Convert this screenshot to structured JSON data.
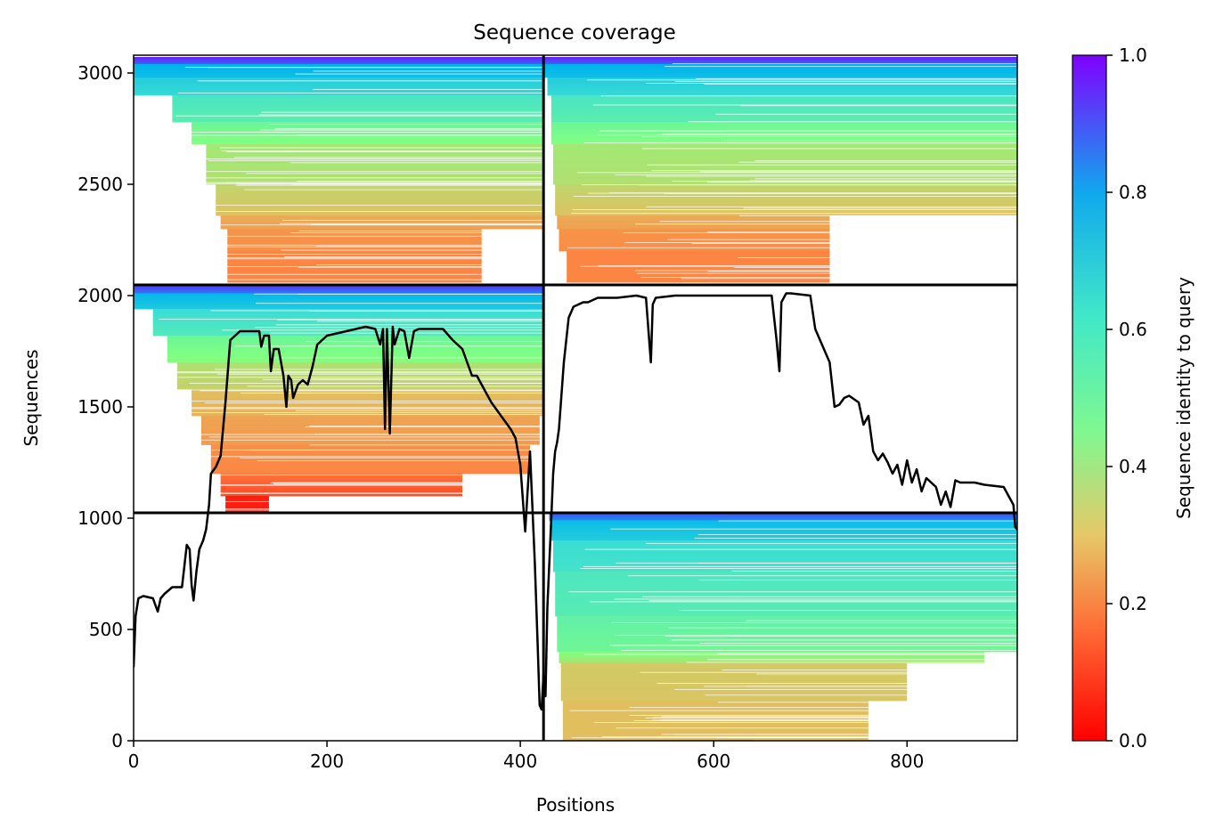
{
  "chart_data": {
    "type": "heatmap",
    "title": "Sequence coverage",
    "xlabel": "Positions",
    "ylabel": "Sequences",
    "colorbar_label": "Sequence identity to query",
    "xlim": [
      0,
      914
    ],
    "ylim": [
      0,
      3080
    ],
    "xticks": [
      0,
      200,
      400,
      600,
      800
    ],
    "yticks": [
      0,
      500,
      1000,
      1500,
      2000,
      2500,
      3000
    ],
    "colorbar_ticks": [
      0.0,
      0.2,
      0.4,
      0.6,
      0.8,
      1.0
    ],
    "colorbar_tick_labels": [
      "0.0",
      "0.2",
      "0.4",
      "0.6",
      "0.8",
      "1.0"
    ],
    "colormap": "rainbow",
    "colormap_colors": [
      "#ff0000",
      "#ff8040",
      "#e0c060",
      "#80ff80",
      "#40e0d0",
      "#00b4ec",
      "#8000ff"
    ],
    "divider_lines": {
      "x": [
        424
      ],
      "y": [
        1024,
        2048
      ]
    },
    "blocks": [
      {
        "name": "block-top-left",
        "x_range": [
          0,
          424
        ],
        "y_range": [
          2048,
          3072
        ],
        "bands": [
          {
            "y": [
              3040,
              3072
            ],
            "x": [
              0,
              424
            ],
            "identity": 0.97
          },
          {
            "y": [
              2980,
              3040
            ],
            "x": [
              0,
              424
            ],
            "identity": 0.84
          },
          {
            "y": [
              2900,
              2980
            ],
            "x": [
              0,
              424
            ],
            "identity": 0.74
          },
          {
            "y": [
              2780,
              2900
            ],
            "x": [
              40,
              424
            ],
            "identity": 0.64
          },
          {
            "y": [
              2680,
              2780
            ],
            "x": [
              60,
              424
            ],
            "identity": 0.55
          },
          {
            "y": [
              2500,
              2680
            ],
            "x": [
              75,
              424
            ],
            "identity": 0.44
          },
          {
            "y": [
              2360,
              2500
            ],
            "x": [
              85,
              424
            ],
            "identity": 0.39
          },
          {
            "y": [
              2300,
              2360
            ],
            "x": [
              90,
              424
            ],
            "identity": 0.28
          },
          {
            "y": [
              2200,
              2300
            ],
            "x": [
              97,
              360
            ],
            "identity": 0.22
          },
          {
            "y": [
              2060,
              2200
            ],
            "x": [
              97,
              360
            ],
            "identity": 0.18
          }
        ]
      },
      {
        "name": "block-top-right",
        "x_range": [
          424,
          914
        ],
        "y_range": [
          2048,
          3072
        ],
        "bands": [
          {
            "y": [
              3040,
              3072
            ],
            "x": [
              424,
              914
            ],
            "identity": 0.97
          },
          {
            "y": [
              2980,
              3040
            ],
            "x": [
              424,
              914
            ],
            "identity": 0.84
          },
          {
            "y": [
              2900,
              2980
            ],
            "x": [
              428,
              914
            ],
            "identity": 0.74
          },
          {
            "y": [
              2780,
              2900
            ],
            "x": [
              432,
              914
            ],
            "identity": 0.64
          },
          {
            "y": [
              2680,
              2780
            ],
            "x": [
              432,
              914
            ],
            "identity": 0.55
          },
          {
            "y": [
              2500,
              2680
            ],
            "x": [
              434,
              914
            ],
            "identity": 0.44
          },
          {
            "y": [
              2360,
              2500
            ],
            "x": [
              436,
              914
            ],
            "identity": 0.39
          },
          {
            "y": [
              2300,
              2360
            ],
            "x": [
              438,
              720
            ],
            "identity": 0.28
          },
          {
            "y": [
              2200,
              2300
            ],
            "x": [
              440,
              720
            ],
            "identity": 0.22
          },
          {
            "y": [
              2060,
              2200
            ],
            "x": [
              448,
              720
            ],
            "identity": 0.18
          }
        ]
      },
      {
        "name": "block-middle-left",
        "x_range": [
          0,
          424
        ],
        "y_range": [
          1024,
          2048
        ],
        "bands": [
          {
            "y": [
              2010,
              2048
            ],
            "x": [
              0,
              424
            ],
            "identity": 0.95
          },
          {
            "y": [
              1940,
              2010
            ],
            "x": [
              0,
              424
            ],
            "identity": 0.82
          },
          {
            "y": [
              1820,
              1940
            ],
            "x": [
              20,
              424
            ],
            "identity": 0.68
          },
          {
            "y": [
              1700,
              1820
            ],
            "x": [
              35,
              424
            ],
            "identity": 0.55
          },
          {
            "y": [
              1580,
              1700
            ],
            "x": [
              45,
              424
            ],
            "identity": 0.42
          },
          {
            "y": [
              1460,
              1580
            ],
            "x": [
              60,
              424
            ],
            "identity": 0.33
          },
          {
            "y": [
              1330,
              1460
            ],
            "x": [
              70,
              420
            ],
            "identity": 0.26
          },
          {
            "y": [
              1200,
              1330
            ],
            "x": [
              80,
              410
            ],
            "identity": 0.21
          },
          {
            "y": [
              1100,
              1200
            ],
            "x": [
              90,
              340
            ],
            "identity": 0.15
          },
          {
            "y": [
              1030,
              1100
            ],
            "x": [
              95,
              140
            ],
            "identity": 0.04
          }
        ]
      },
      {
        "name": "block-bottom-right",
        "x_range": [
          424,
          914
        ],
        "y_range": [
          0,
          1024
        ],
        "bands": [
          {
            "y": [
              990,
              1024
            ],
            "x": [
              430,
              914
            ],
            "identity": 0.93
          },
          {
            "y": [
              900,
              990
            ],
            "x": [
              432,
              914
            ],
            "identity": 0.8
          },
          {
            "y": [
              760,
              900
            ],
            "x": [
              434,
              914
            ],
            "identity": 0.68
          },
          {
            "y": [
              560,
              760
            ],
            "x": [
              436,
              914
            ],
            "identity": 0.63
          },
          {
            "y": [
              400,
              560
            ],
            "x": [
              438,
              914
            ],
            "identity": 0.58
          },
          {
            "y": [
              350,
              400
            ],
            "x": [
              440,
              880
            ],
            "identity": 0.5
          },
          {
            "y": [
              180,
              350
            ],
            "x": [
              442,
              800
            ],
            "identity": 0.36
          },
          {
            "y": [
              0,
              180
            ],
            "x": [
              444,
              760
            ],
            "identity": 0.33
          }
        ]
      }
    ],
    "coverage_line": {
      "x": [
        0,
        2,
        5,
        10,
        20,
        25,
        28,
        32,
        40,
        50,
        55,
        58,
        60,
        62,
        65,
        68,
        72,
        75,
        78,
        80,
        85,
        90,
        95,
        100,
        105,
        110,
        130,
        132,
        135,
        140,
        142,
        145,
        150,
        155,
        158,
        160,
        163,
        165,
        170,
        175,
        180,
        185,
        190,
        200,
        220,
        240,
        250,
        255,
        258,
        260,
        262,
        265,
        268,
        270,
        275,
        280,
        285,
        290,
        295,
        300,
        320,
        330,
        340,
        350,
        355,
        360,
        370,
        380,
        390,
        395,
        400,
        405,
        410,
        415,
        418,
        420,
        422,
        424,
        426,
        428,
        430,
        432,
        434,
        436,
        438,
        440,
        445,
        450,
        455,
        460,
        465,
        470,
        480,
        500,
        520,
        530,
        535,
        537,
        540,
        560,
        600,
        640,
        660,
        665,
        668,
        670,
        675,
        680,
        700,
        705,
        710,
        720,
        725,
        730,
        735,
        740,
        750,
        755,
        760,
        765,
        770,
        775,
        780,
        785,
        790,
        795,
        800,
        805,
        810,
        815,
        820,
        825,
        830,
        835,
        840,
        845,
        850,
        855,
        860,
        870,
        880,
        900,
        910,
        912,
        914
      ],
      "y": [
        330,
        560,
        640,
        650,
        640,
        580,
        640,
        660,
        690,
        690,
        880,
        860,
        700,
        630,
        760,
        860,
        900,
        950,
        1060,
        1200,
        1230,
        1280,
        1520,
        1800,
        1820,
        1840,
        1840,
        1770,
        1820,
        1820,
        1660,
        1760,
        1760,
        1640,
        1500,
        1640,
        1620,
        1540,
        1600,
        1620,
        1600,
        1680,
        1780,
        1820,
        1840,
        1860,
        1850,
        1780,
        1850,
        1400,
        1850,
        1380,
        1860,
        1780,
        1850,
        1840,
        1720,
        1840,
        1850,
        1850,
        1850,
        1800,
        1760,
        1640,
        1640,
        1600,
        1520,
        1460,
        1400,
        1360,
        1240,
        940,
        1300,
        800,
        420,
        160,
        140,
        300,
        200,
        600,
        800,
        1000,
        1200,
        1300,
        1340,
        1400,
        1700,
        1900,
        1950,
        1960,
        1970,
        1970,
        1990,
        1990,
        2000,
        1990,
        1700,
        1960,
        1990,
        2000,
        2000,
        2000,
        2000,
        1800,
        1660,
        1970,
        2010,
        2010,
        2000,
        1850,
        1800,
        1700,
        1500,
        1510,
        1540,
        1550,
        1520,
        1420,
        1460,
        1300,
        1260,
        1290,
        1250,
        1200,
        1240,
        1150,
        1260,
        1160,
        1220,
        1120,
        1180,
        1160,
        1140,
        1060,
        1120,
        1050,
        1170,
        1160,
        1160,
        1160,
        1150,
        1140,
        1060,
        960,
        950
      ]
    }
  }
}
